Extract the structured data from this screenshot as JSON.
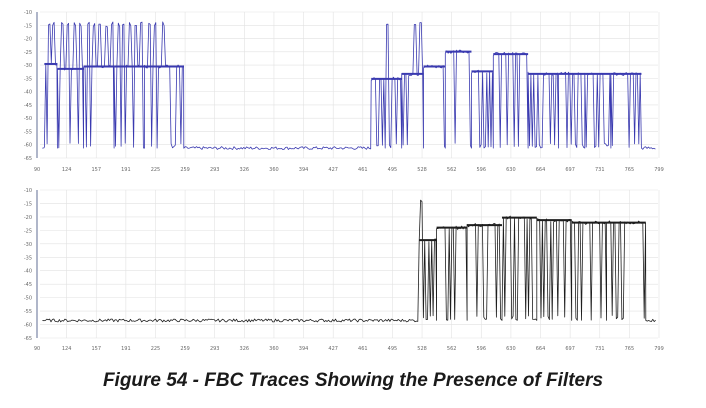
{
  "caption": "Figure 54 - FBC Traces Showing the Presence of Filters",
  "colors": {
    "top_trace": "#3a3ab0",
    "bottom_trace": "#1e1e1e",
    "grid": "#e2e2e2",
    "axis": "#9aa4bf"
  },
  "chart_data": [
    {
      "type": "line",
      "name_in_image": "",
      "x_ticks": [
        "90",
        "124",
        "157",
        "191",
        "225",
        "259",
        "293",
        "326",
        "360",
        "394",
        "427",
        "461",
        "495",
        "528",
        "562",
        "596",
        "630",
        "664",
        "697",
        "731",
        "765",
        "799"
      ],
      "y_ticks": [
        "-10",
        "-15",
        "-20",
        "-25",
        "-30",
        "-35",
        "-40",
        "-45",
        "-50",
        "-55",
        "-60",
        "-65"
      ],
      "xlim": [
        90,
        799
      ],
      "ylim": [
        -67,
        -8
      ],
      "grid": true,
      "baseline": -63,
      "segments": [
        {
          "x0": 95,
          "x1": 110,
          "level": -29,
          "spikes": [
            100,
            106
          ]
        },
        {
          "x0": 110,
          "x1": 140,
          "level": -31,
          "spikes": [
            115,
            122,
            130,
            136
          ]
        },
        {
          "x0": 140,
          "x1": 175,
          "level": -30,
          "spikes": [
            145,
            152,
            158,
            166,
            172
          ]
        },
        {
          "x0": 175,
          "x1": 210,
          "level": -30,
          "spikes": [
            180,
            186,
            194,
            200,
            206
          ]
        },
        {
          "x0": 210,
          "x1": 255,
          "level": -30,
          "spikes": [
            215,
            222,
            232
          ]
        },
        {
          "x0": 470,
          "x1": 505,
          "level": -35,
          "spikes": [
            488
          ]
        },
        {
          "x0": 505,
          "x1": 530,
          "level": -33,
          "spikes": [
            520,
            526
          ]
        },
        {
          "x0": 530,
          "x1": 555,
          "level": -30,
          "spikes": []
        },
        {
          "x0": 555,
          "x1": 585,
          "level": -24,
          "spikes": []
        },
        {
          "x0": 585,
          "x1": 610,
          "level": -32,
          "spikes": []
        },
        {
          "x0": 610,
          "x1": 650,
          "level": -25,
          "spikes": []
        },
        {
          "x0": 650,
          "x1": 685,
          "level": -33,
          "spikes": []
        },
        {
          "x0": 685,
          "x1": 715,
          "level": -33,
          "spikes": []
        },
        {
          "x0": 715,
          "x1": 745,
          "level": -33,
          "spikes": []
        },
        {
          "x0": 745,
          "x1": 780,
          "level": -33,
          "spikes": []
        }
      ]
    },
    {
      "type": "line",
      "name_in_image": "",
      "x_ticks": [
        "90",
        "124",
        "157",
        "191",
        "225",
        "259",
        "293",
        "326",
        "360",
        "394",
        "427",
        "461",
        "495",
        "528",
        "562",
        "596",
        "630",
        "664",
        "697",
        "731",
        "765",
        "799"
      ],
      "y_ticks": [
        "-10",
        "-15",
        "-20",
        "-25",
        "-30",
        "-35",
        "-40",
        "-45",
        "-50",
        "-55",
        "-60",
        "-65"
      ],
      "xlim": [
        90,
        799
      ],
      "ylim": [
        -67,
        -8
      ],
      "grid": true,
      "baseline": -60,
      "segments": [
        {
          "x0": 525,
          "x1": 545,
          "level": -28,
          "spikes": [
            528
          ]
        },
        {
          "x0": 545,
          "x1": 580,
          "level": -23,
          "spikes": []
        },
        {
          "x0": 580,
          "x1": 620,
          "level": -22,
          "spikes": []
        },
        {
          "x0": 620,
          "x1": 660,
          "level": -19,
          "spikes": []
        },
        {
          "x0": 660,
          "x1": 700,
          "level": -20,
          "spikes": []
        },
        {
          "x0": 700,
          "x1": 740,
          "level": -21,
          "spikes": []
        },
        {
          "x0": 740,
          "x1": 785,
          "level": -21,
          "spikes": []
        }
      ]
    }
  ]
}
